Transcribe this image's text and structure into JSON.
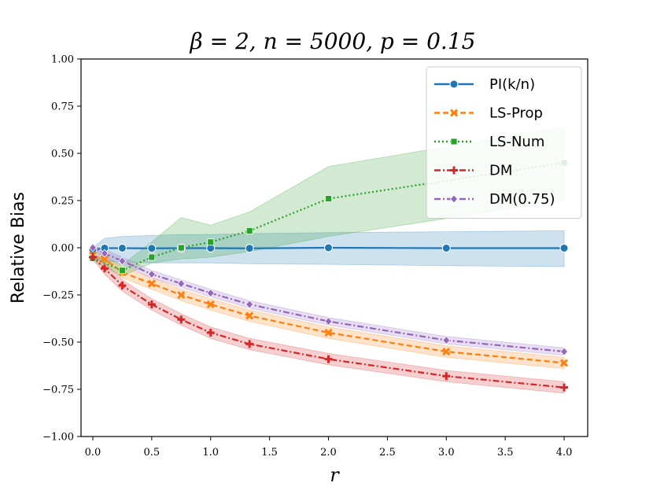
{
  "chart_data": {
    "type": "line",
    "title": "β = 2, n = 5000, p = 0.15",
    "xlabel": "r",
    "ylabel": "Relative Bias",
    "xlim": [
      -0.1,
      4.2
    ],
    "ylim": [
      -1.0,
      1.0
    ],
    "xticks": [
      0.0,
      0.5,
      1.0,
      1.5,
      2.0,
      2.5,
      3.0,
      3.5,
      4.0
    ],
    "yticks": [
      -1.0,
      -0.75,
      -0.5,
      -0.25,
      0.0,
      0.25,
      0.5,
      0.75,
      1.0
    ],
    "xtick_labels": [
      "0.0",
      "0.5",
      "1.0",
      "1.5",
      "2.0",
      "2.5",
      "3.0",
      "3.5",
      "4.0"
    ],
    "ytick_labels": [
      "−1.00",
      "−0.75",
      "−0.50",
      "−0.25",
      "0.00",
      "0.25",
      "0.50",
      "0.75",
      "1.00"
    ],
    "grid": false,
    "legend_position": "top-right",
    "series": [
      {
        "name": "PI(k/n)",
        "color": "#1f77b4",
        "marker": "circle",
        "linestyle": "solid",
        "x": [
          0.0,
          0.1,
          0.25,
          0.5,
          0.75,
          1.0,
          1.33,
          2.0,
          3.0,
          4.0
        ],
        "values": [
          -0.01,
          -0.002,
          -0.002,
          -0.003,
          -0.002,
          -0.002,
          -0.003,
          0.0,
          -0.002,
          -0.002
        ],
        "lower": [
          -0.04,
          -0.07,
          -0.075,
          -0.08,
          -0.08,
          -0.08,
          -0.085,
          -0.088,
          -0.095,
          -0.1
        ],
        "upper": [
          0.0,
          0.05,
          0.06,
          0.065,
          0.07,
          0.07,
          0.075,
          0.08,
          0.085,
          0.09
        ]
      },
      {
        "name": "LS-Prop",
        "color": "#ff7f0e",
        "marker": "x",
        "linestyle": "dashed",
        "x": [
          0.0,
          0.1,
          0.25,
          0.5,
          0.75,
          1.0,
          1.33,
          2.0,
          3.0,
          4.0
        ],
        "values": [
          -0.04,
          -0.06,
          -0.13,
          -0.19,
          -0.25,
          -0.3,
          -0.36,
          -0.45,
          -0.55,
          -0.61
        ],
        "lower": [
          -0.05,
          -0.08,
          -0.16,
          -0.22,
          -0.28,
          -0.33,
          -0.39,
          -0.48,
          -0.58,
          -0.64
        ],
        "upper": [
          -0.02,
          -0.04,
          -0.1,
          -0.16,
          -0.22,
          -0.27,
          -0.33,
          -0.42,
          -0.52,
          -0.58
        ]
      },
      {
        "name": "LS-Num",
        "color": "#2ca02c",
        "marker": "square",
        "linestyle": "dotted",
        "x": [
          0.0,
          0.25,
          0.5,
          0.75,
          1.0,
          1.33,
          2.0,
          4.0
        ],
        "values": [
          -0.055,
          -0.12,
          -0.05,
          0.0,
          0.03,
          0.09,
          0.26,
          0.45
        ],
        "lower": [
          -0.07,
          -0.15,
          -0.08,
          -0.06,
          -0.05,
          -0.02,
          0.06,
          0.25
        ],
        "upper": [
          -0.04,
          -0.09,
          0.03,
          0.16,
          0.12,
          0.19,
          0.43,
          0.64
        ]
      },
      {
        "name": "DM",
        "color": "#d62728",
        "marker": "plus",
        "linestyle": "dashdot",
        "x": [
          0.0,
          0.1,
          0.25,
          0.5,
          0.75,
          1.0,
          1.33,
          2.0,
          3.0,
          4.0
        ],
        "values": [
          -0.05,
          -0.11,
          -0.2,
          -0.3,
          -0.38,
          -0.45,
          -0.51,
          -0.59,
          -0.68,
          -0.74
        ],
        "lower": [
          -0.06,
          -0.14,
          -0.23,
          -0.33,
          -0.41,
          -0.48,
          -0.54,
          -0.62,
          -0.71,
          -0.77
        ],
        "upper": [
          -0.04,
          -0.08,
          -0.17,
          -0.27,
          -0.35,
          -0.42,
          -0.48,
          -0.56,
          -0.65,
          -0.71
        ]
      },
      {
        "name": "DM(0.75)",
        "color": "#9467bd",
        "marker": "diamond",
        "linestyle": "dashdot",
        "x": [
          0.0,
          0.1,
          0.25,
          0.5,
          0.75,
          1.0,
          1.33,
          2.0,
          3.0,
          4.0
        ],
        "values": [
          0.0,
          -0.03,
          -0.07,
          -0.14,
          -0.19,
          -0.24,
          -0.3,
          -0.39,
          -0.49,
          -0.55
        ],
        "lower": [
          -0.01,
          -0.05,
          -0.09,
          -0.16,
          -0.21,
          -0.26,
          -0.32,
          -0.41,
          -0.51,
          -0.57
        ],
        "upper": [
          0.01,
          -0.01,
          -0.05,
          -0.12,
          -0.17,
          -0.22,
          -0.28,
          -0.37,
          -0.47,
          -0.53
        ]
      }
    ]
  }
}
